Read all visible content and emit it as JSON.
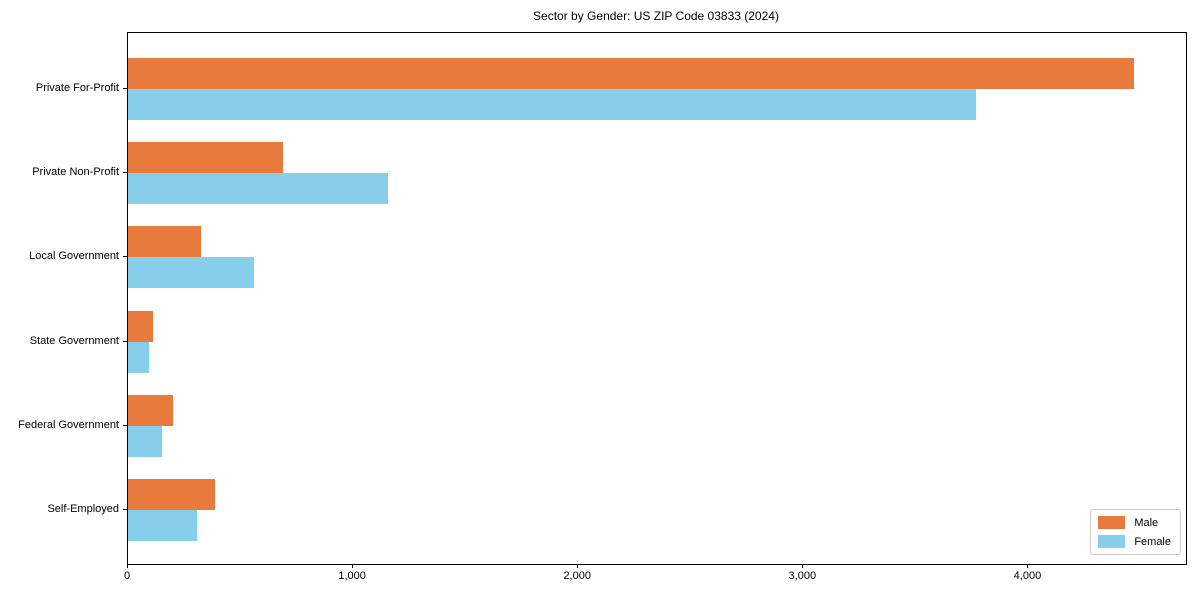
{
  "title": "Sector by Gender: US ZIP Code 03833 (2024)",
  "colors": {
    "male": "#E87A3C",
    "female": "#87CEEB",
    "axis": "#000000",
    "legend_border": "#cccccc",
    "background": "#ffffff"
  },
  "legend": {
    "position": "lower right",
    "items": [
      {
        "label": "Male",
        "color_key": "male"
      },
      {
        "label": "Female",
        "color_key": "female"
      }
    ]
  },
  "chart_data": {
    "type": "bar",
    "orientation": "horizontal",
    "title": "Sector by Gender: US ZIP Code 03833 (2024)",
    "xlabel": "",
    "ylabel": "",
    "categories": [
      "Private For-Profit",
      "Private Non-Profit",
      "Local Government",
      "State Government",
      "Federal Government",
      "Self-Employed"
    ],
    "series": [
      {
        "name": "Male",
        "values": [
          4470,
          690,
          325,
          110,
          200,
          385
        ]
      },
      {
        "name": "Female",
        "values": [
          3765,
          1155,
          560,
          95,
          150,
          305
        ]
      }
    ],
    "xlim": [
      0,
      4700
    ],
    "x_ticks": [
      0,
      1000,
      2000,
      3000,
      4000
    ],
    "x_tick_labels": [
      "0",
      "1,000",
      "2,000",
      "3,000",
      "4,000"
    ],
    "grid": false,
    "legend_position": "lower right"
  }
}
